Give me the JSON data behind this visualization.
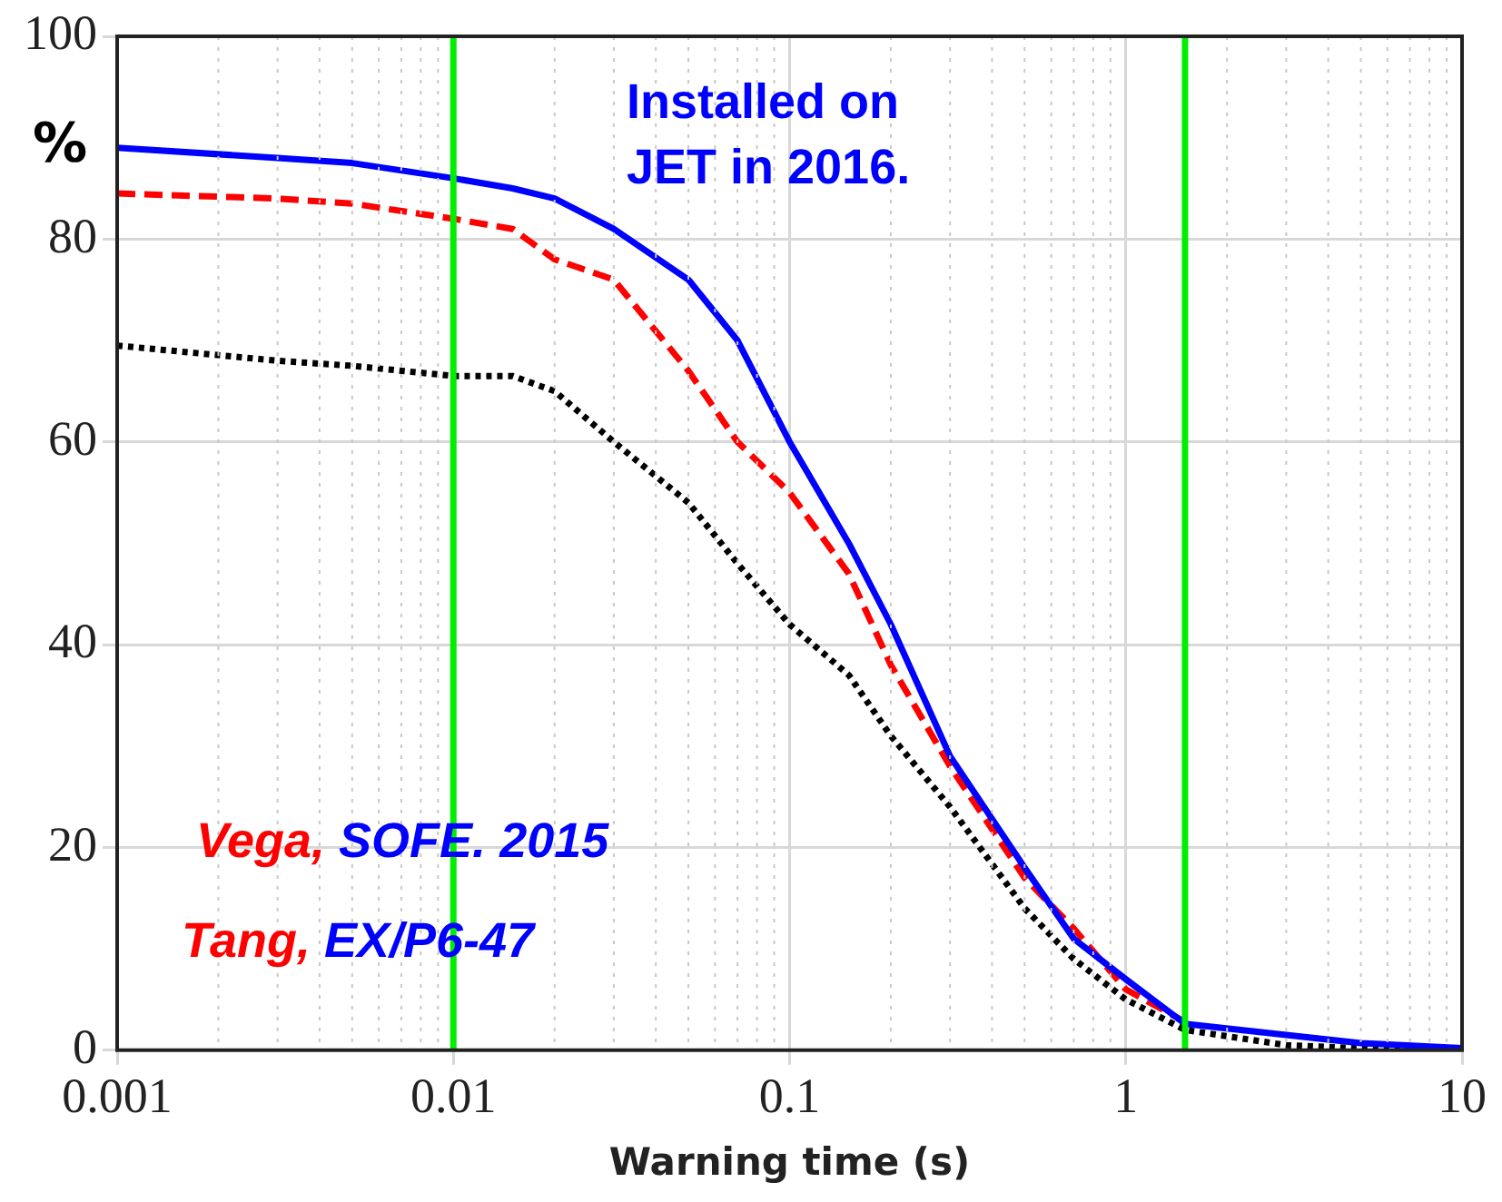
{
  "chart_data": {
    "type": "line",
    "xlabel": "Warning time (s)",
    "ylabel": "%",
    "log": "x",
    "grid": true,
    "legend": false,
    "marker": "none",
    "xlim": [
      0.001,
      10
    ],
    "xticks": [
      0.001,
      0.01,
      0.1,
      1,
      10
    ],
    "ylim": [
      0,
      100
    ],
    "yticks": [
      0,
      20,
      40,
      60,
      80,
      100
    ],
    "x": [
      0.001,
      0.003,
      0.005,
      0.01,
      0.015,
      0.02,
      0.03,
      0.05,
      0.07,
      0.1,
      0.15,
      0.2,
      0.3,
      0.5,
      0.7,
      1,
      1.5,
      3,
      5,
      10
    ],
    "series": [
      {
        "color": "#0000ff",
        "line_style": "solid",
        "values": [
          89,
          88,
          87.5,
          86,
          85,
          84,
          81,
          76,
          70,
          60,
          50,
          42,
          29,
          18,
          11,
          7,
          2.6,
          1.5,
          0.7,
          0.2
        ]
      },
      {
        "color": "#ff0000",
        "line_style": "dashed",
        "values": [
          84.5,
          84,
          83.5,
          82,
          81,
          78,
          76,
          67,
          60,
          55,
          47,
          38,
          28,
          17,
          12,
          6,
          2.8,
          null,
          null,
          null
        ]
      },
      {
        "color": "#000000",
        "line_style": "dotted",
        "values": [
          69.5,
          68,
          67.5,
          66.5,
          66.5,
          65,
          60,
          54,
          48,
          42,
          37,
          31,
          24,
          14,
          9,
          5,
          2,
          0.5,
          0.2,
          0
        ]
      }
    ],
    "ref_lines": [
      {
        "axis": "x",
        "value": 0.01,
        "color": "#00ee00"
      },
      {
        "axis": "x",
        "value": 1.5,
        "color": "#00ee00"
      }
    ],
    "annotations": [
      "Installed on JET in 2016.",
      "Vega, SOFE. 2015",
      "Tang, EX/P6-47"
    ]
  }
}
